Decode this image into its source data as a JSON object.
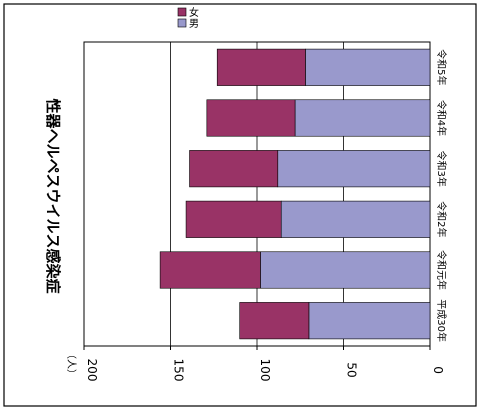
{
  "chart_data": {
    "type": "bar",
    "orientation": "horizontal",
    "stacked": true,
    "title": "性器ヘルペスウイルス感染症",
    "unit_label": "（人）",
    "categories": [
      "平成30年",
      "令和元年",
      "令和2年",
      "令和3年",
      "令和4年",
      "令和5年"
    ],
    "series": [
      {
        "name": "男",
        "color": "#9999cc",
        "values": [
          70,
          98,
          86,
          88,
          78,
          72
        ]
      },
      {
        "name": "女",
        "color": "#993366",
        "values": [
          40,
          58,
          55,
          51,
          51,
          51
        ]
      }
    ],
    "xlim": [
      0,
      200
    ],
    "ticks": [
      0,
      50,
      100,
      150,
      200
    ],
    "grid": true,
    "legend_position": "top-right"
  }
}
